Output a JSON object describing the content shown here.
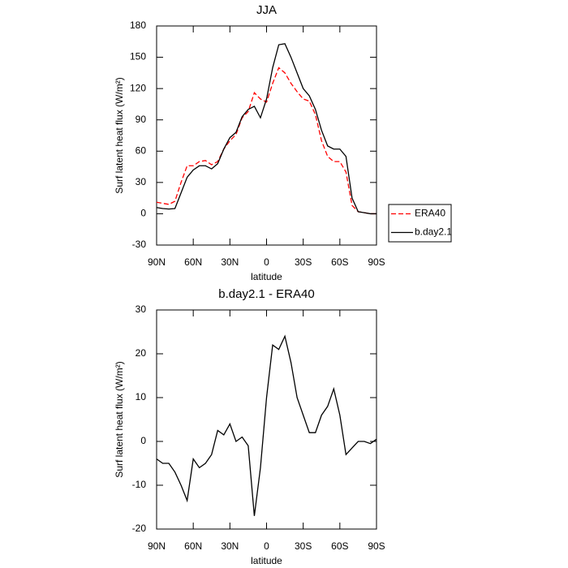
{
  "chart_data": [
    {
      "type": "line",
      "title": "JJA",
      "xlabel": "latitude",
      "ylabel": "Surf latent heat flux (W/m²)",
      "x": [
        90,
        85,
        80,
        75,
        70,
        65,
        60,
        55,
        50,
        45,
        40,
        35,
        30,
        25,
        20,
        15,
        10,
        5,
        0,
        -5,
        -10,
        -15,
        -20,
        -25,
        -30,
        -35,
        -40,
        -45,
        -50,
        -55,
        -60,
        -65,
        -70,
        -75,
        -80,
        -85,
        -90
      ],
      "series": [
        {
          "name": "ERA40",
          "color": "#ff0000",
          "line_style": "dashed",
          "values": [
            11,
            10,
            9,
            12,
            30,
            46,
            46,
            50,
            51,
            47,
            50,
            62,
            70,
            76,
            92,
            98,
            116,
            110,
            107,
            125,
            140,
            135,
            125,
            117,
            110,
            108,
            95,
            70,
            55,
            50,
            50,
            40,
            8,
            2,
            1,
            0,
            0
          ]
        },
        {
          "name": "b.day2.1",
          "color": "#000000",
          "line_style": "solid",
          "values": [
            6,
            5,
            4.5,
            5,
            20,
            35,
            42,
            46,
            46,
            43,
            48,
            62,
            73,
            78,
            93,
            100,
            103,
            92,
            110,
            140,
            162,
            163,
            150,
            135,
            120,
            113,
            100,
            80,
            65,
            62,
            62,
            55,
            15,
            2,
            1,
            0,
            0
          ]
        }
      ],
      "xlim": [
        90,
        -90
      ],
      "xticks": [
        {
          "value": 90,
          "label": "90N"
        },
        {
          "value": 60,
          "label": "60N"
        },
        {
          "value": 30,
          "label": "30N"
        },
        0,
        {
          "value": -30,
          "label": "30S"
        },
        {
          "value": -60,
          "label": "60S"
        },
        {
          "value": -90,
          "label": "90S"
        }
      ],
      "ylim": [
        -30,
        180
      ],
      "yticks": [
        -30,
        0,
        30,
        60,
        90,
        120,
        150,
        180
      ],
      "legend": "right"
    },
    {
      "type": "line",
      "title": "b.day2.1 - ERA40",
      "xlabel": "latitude",
      "ylabel": "Surf latent heat flux (W/m²)",
      "x": [
        90,
        85,
        80,
        75,
        70,
        65,
        60,
        55,
        50,
        45,
        40,
        35,
        30,
        25,
        20,
        15,
        10,
        5,
        0,
        -5,
        -10,
        -15,
        -20,
        -25,
        -30,
        -35,
        -40,
        -45,
        -50,
        -55,
        -60,
        -65,
        -70,
        -75,
        -80,
        -85,
        -90
      ],
      "values": [
        -4,
        -5,
        -5,
        -7,
        -10,
        -13.5,
        -4,
        -6,
        -5,
        -3,
        2.5,
        1.5,
        4,
        0,
        1,
        -1,
        -17,
        -6,
        10,
        22,
        21,
        24,
        18,
        10,
        6,
        2,
        2,
        6,
        8,
        12,
        6,
        -3,
        -1.5,
        0,
        0,
        -0.5,
        0.5
      ],
      "color": "#000000",
      "xlim": [
        90,
        -90
      ],
      "xticks": [
        {
          "value": 90,
          "label": "90N"
        },
        {
          "value": 60,
          "label": "60N"
        },
        {
          "value": 30,
          "label": "30N"
        },
        0,
        {
          "value": -30,
          "label": "30S"
        },
        {
          "value": -60,
          "label": "60S"
        },
        {
          "value": -90,
          "label": "90S"
        }
      ],
      "ylim": [
        -20,
        30
      ],
      "yticks": [
        -20,
        -10,
        0,
        10,
        20,
        30
      ]
    }
  ]
}
